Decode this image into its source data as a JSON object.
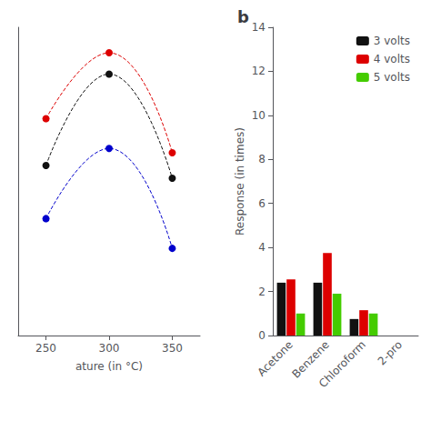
{
  "chart_data": [
    {
      "type": "line",
      "x": [
        250,
        300,
        350
      ],
      "xlabel": "ature (in °C)",
      "series": [
        {
          "color": "#dd0000",
          "values": [
            10.2,
            13.3,
            8.6
          ]
        },
        {
          "color": "#111111",
          "values": [
            8.0,
            12.3,
            7.4
          ]
        },
        {
          "color": "#0000cc",
          "values": [
            5.5,
            8.8,
            4.1
          ]
        }
      ],
      "xlim": [
        228,
        372
      ],
      "xticks": [
        250,
        300,
        350
      ],
      "ylim": [
        0,
        14.5
      ],
      "tick_labels": "x",
      "grid": false,
      "marker": "circle",
      "line_style": "dashed"
    },
    {
      "type": "bar",
      "title": "b",
      "categories": [
        "Acetone",
        "Benzene",
        "Chloroform",
        "2-pro"
      ],
      "series": [
        {
          "name": "3 volts",
          "color": "#111111",
          "values": [
            2.4,
            2.4,
            0.75,
            0.0
          ]
        },
        {
          "name": "4 volts",
          "color": "#dd0000",
          "values": [
            2.55,
            3.75,
            1.15,
            0.0
          ]
        },
        {
          "name": "5 volts",
          "color": "#44cc00",
          "values": [
            1.0,
            1.9,
            1.0,
            0.0
          ]
        }
      ],
      "ylabel": "Response (in times)",
      "ylim": [
        0,
        14
      ],
      "yticks": [
        0,
        2,
        4,
        6,
        8,
        10,
        12,
        14
      ],
      "grid": false,
      "legend": "upper right"
    }
  ]
}
